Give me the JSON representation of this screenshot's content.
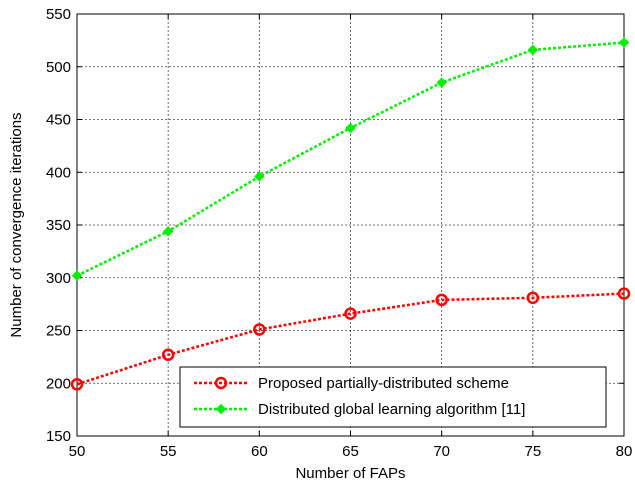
{
  "chart_data": {
    "type": "line",
    "title": "",
    "xlabel": "Number of FAPs",
    "ylabel": "Number of convergence iterations",
    "x": [
      50,
      55,
      60,
      65,
      70,
      75,
      80
    ],
    "xlim": [
      50,
      80
    ],
    "ylim": [
      150,
      550
    ],
    "xticks": [
      50,
      55,
      60,
      65,
      70,
      75,
      80
    ],
    "yticks": [
      150,
      200,
      250,
      300,
      350,
      400,
      450,
      500,
      550
    ],
    "grid": true,
    "legend_position": "bottom-right",
    "series": [
      {
        "name": "Proposed partially-distributed scheme",
        "color": "#ff0000",
        "marker": "circle",
        "values": [
          199,
          227,
          251,
          266,
          279,
          281,
          285
        ]
      },
      {
        "name": "Distributed global learning algorithm [11]",
        "color": "#00ee00",
        "marker": "diamond",
        "values": [
          302,
          344,
          396,
          442,
          485,
          516,
          523
        ]
      }
    ]
  }
}
